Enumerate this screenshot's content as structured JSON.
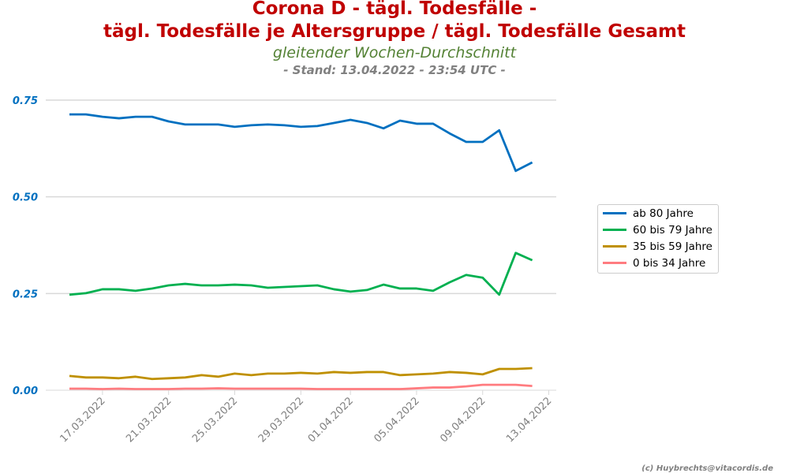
{
  "chart_data": {
    "type": "line",
    "title": "Corona D - tägl. Todesfälle -",
    "title2": "tägl. Todesfälle je Altersgruppe / tägl. Todesfälle Gesamt",
    "subtitle": "gleitender Wochen-Durchschnitt",
    "stand": "- Stand: 13.04.2022 - 23:54 UTC -",
    "footer": "(c) Huybrechts@vitacordis.de",
    "x_start": "15.03.2022",
    "x_ticks": [
      "17.03.2022",
      "21.03.2022",
      "25.03.2022",
      "29.03.2022",
      "01.04.2022",
      "05.04.2022",
      "09.04.2022",
      "13.04.2022"
    ],
    "x_tick_day_offsets": [
      2,
      6,
      10,
      14,
      17,
      21,
      25,
      29
    ],
    "y_ticks": [
      "0.00",
      "0.25",
      "0.50",
      "0.75"
    ],
    "y_tick_values": [
      0,
      0.25,
      0.5,
      0.75
    ],
    "ylim": [
      0,
      0.75
    ],
    "legend": "right",
    "series": [
      {
        "name": "ab 80 Jahre",
        "color": "#0070c0",
        "values": [
          0.713,
          0.713,
          0.707,
          0.703,
          0.707,
          0.707,
          0.695,
          0.687,
          0.687,
          0.687,
          0.681,
          0.685,
          0.687,
          0.685,
          0.681,
          0.683,
          0.691,
          0.699,
          0.691,
          0.677,
          0.697,
          0.689,
          0.689,
          0.664,
          0.642,
          0.642,
          0.672,
          0.567,
          0.589
        ]
      },
      {
        "name": "60 bis 79 Jahre",
        "color": "#00b050",
        "values": [
          0.247,
          0.251,
          0.261,
          0.261,
          0.257,
          0.263,
          0.271,
          0.275,
          0.271,
          0.271,
          0.273,
          0.271,
          0.265,
          0.267,
          0.269,
          0.271,
          0.261,
          0.255,
          0.259,
          0.273,
          0.263,
          0.263,
          0.257,
          0.279,
          0.298,
          0.291,
          0.247,
          0.355,
          0.336
        ]
      },
      {
        "name": "35 bis 59 Jahre",
        "color": "#bf9000",
        "values": [
          0.037,
          0.033,
          0.033,
          0.031,
          0.035,
          0.029,
          0.031,
          0.033,
          0.039,
          0.035,
          0.043,
          0.039,
          0.043,
          0.043,
          0.045,
          0.043,
          0.047,
          0.045,
          0.047,
          0.047,
          0.039,
          0.041,
          0.043,
          0.047,
          0.045,
          0.041,
          0.055,
          0.055,
          0.057
        ]
      },
      {
        "name": "0 bis 34 Jahre",
        "color": "#ff7c80",
        "values": [
          0.004,
          0.004,
          0.003,
          0.004,
          0.003,
          0.003,
          0.003,
          0.004,
          0.004,
          0.005,
          0.004,
          0.004,
          0.004,
          0.004,
          0.004,
          0.003,
          0.003,
          0.003,
          0.003,
          0.003,
          0.003,
          0.005,
          0.007,
          0.007,
          0.01,
          0.014,
          0.014,
          0.014,
          0.011
        ]
      }
    ]
  }
}
